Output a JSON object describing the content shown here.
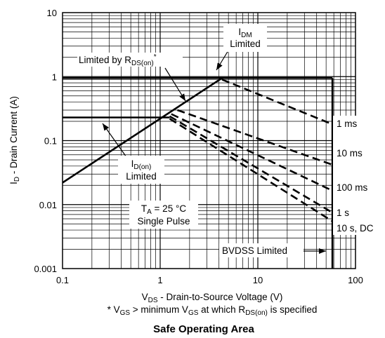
{
  "chart_data": {
    "type": "line",
    "title": "Safe Operating Area",
    "x_scale": "log",
    "y_scale": "log",
    "xlim": [
      0.1,
      100
    ],
    "ylim": [
      0.001,
      10
    ],
    "x_ticks": [
      "0.1",
      "1",
      "10",
      "100"
    ],
    "y_ticks": [
      "10",
      "1",
      "0.1",
      "0.01",
      "0.001"
    ],
    "xlabel": {
      "base": "V",
      "sub": "DS",
      "rest": " - Drain-to-Source Voltage (V)"
    },
    "ylabel": {
      "base": "I",
      "sub": "D",
      "rest": " - Drain Current (A)"
    },
    "footnote": {
      "p1": "* V",
      "s1": "GS",
      "p2": " > minimum V",
      "s2": "GS",
      "p3": " at which R",
      "s3": "DS(on)",
      "p4": " is specified"
    },
    "grid": true,
    "curves": [
      {
        "name": "Limited by RDS(on)",
        "style": "solid",
        "x": [
          0.1,
          4.3
        ],
        "y": [
          0.022,
          0.95
        ]
      },
      {
        "name": "IDM Limited",
        "style": "solid",
        "x": [
          0.1,
          58
        ],
        "y": [
          0.95,
          0.95
        ]
      },
      {
        "name": "ID(on) Limited",
        "style": "solid",
        "x": [
          0.1,
          1.25
        ],
        "y": [
          0.23,
          0.23
        ]
      },
      {
        "name": "BVDSS Limited",
        "style": "solid",
        "x": [
          58,
          58
        ],
        "y": [
          0.001,
          0.95
        ]
      },
      {
        "name": "1 ms",
        "style": "dashed",
        "x": [
          4.3,
          58
        ],
        "y": [
          0.9,
          0.18
        ]
      },
      {
        "name": "10 ms",
        "style": "dashed",
        "x": [
          1.5,
          58
        ],
        "y": [
          0.3,
          0.042
        ]
      },
      {
        "name": "100 ms",
        "style": "dashed",
        "x": [
          1.3,
          58
        ],
        "y": [
          0.26,
          0.0165
        ]
      },
      {
        "name": "1 s",
        "style": "dashed",
        "x": [
          1.25,
          58
        ],
        "y": [
          0.24,
          0.0075
        ]
      },
      {
        "name": "10 s, DC",
        "style": "dashed",
        "x": [
          1.25,
          58
        ],
        "y": [
          0.22,
          0.0055
        ]
      }
    ],
    "annotations": {
      "idm": {
        "base": "I",
        "sub": "DM",
        "line2": "Limited"
      },
      "rds": {
        "p1": "Limited by R",
        "sub": "DS(on)",
        "sup": "*"
      },
      "idon": {
        "base": "I",
        "sub": "D(on)",
        "line2": "Limited"
      },
      "ta": {
        "base": "T",
        "sub": "A",
        "rest": " = 25 °C",
        "line2": "Single Pulse"
      },
      "bvdss": "BVDSS Limited",
      "curve_labels": [
        "1 ms",
        "10 ms",
        "100 ms",
        "1 s",
        "10 s, DC"
      ]
    }
  }
}
